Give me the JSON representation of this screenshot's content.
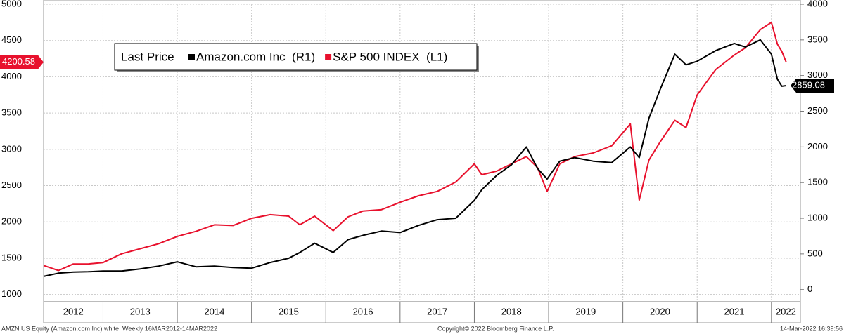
{
  "chart_data": {
    "type": "line",
    "legend_title": "Last Price",
    "x": [
      2012.2,
      2012.4,
      2012.6,
      2012.8,
      2013.0,
      2013.25,
      2013.5,
      2013.75,
      2014.0,
      2014.25,
      2014.5,
      2014.75,
      2015.0,
      2015.25,
      2015.5,
      2015.65,
      2015.85,
      2016.1,
      2016.3,
      2016.5,
      2016.75,
      2017.0,
      2017.25,
      2017.5,
      2017.75,
      2018.0,
      2018.1,
      2018.3,
      2018.5,
      2018.7,
      2018.85,
      2018.98,
      2019.15,
      2019.35,
      2019.6,
      2019.85,
      2020.1,
      2020.22,
      2020.35,
      2020.5,
      2020.7,
      2020.85,
      2021.0,
      2021.25,
      2021.5,
      2021.65,
      2021.85,
      2022.0,
      2022.08,
      2022.14,
      2022.2
    ],
    "series": [
      {
        "name": "Amazon.com Inc  (R1)",
        "color": "#000000",
        "axis": "y2",
        "values": [
          185,
          230,
          245,
          250,
          260,
          260,
          290,
          330,
          390,
          320,
          330,
          310,
          300,
          380,
          440,
          520,
          650,
          520,
          700,
          760,
          820,
          800,
          900,
          980,
          1000,
          1250,
          1400,
          1600,
          1750,
          2000,
          1700,
          1550,
          1800,
          1850,
          1800,
          1780,
          2000,
          1850,
          2400,
          2800,
          3300,
          3150,
          3200,
          3350,
          3450,
          3400,
          3500,
          3300,
          2950,
          2850,
          2859.08
        ]
      },
      {
        "name": "S&P 500 INDEX  (L1)",
        "color": "#e8112d",
        "axis": "y",
        "values": [
          1400,
          1330,
          1420,
          1420,
          1440,
          1560,
          1630,
          1700,
          1800,
          1870,
          1960,
          1950,
          2050,
          2100,
          2080,
          1960,
          2080,
          1880,
          2070,
          2150,
          2170,
          2270,
          2360,
          2420,
          2550,
          2800,
          2650,
          2700,
          2800,
          2900,
          2750,
          2420,
          2800,
          2900,
          2950,
          3050,
          3350,
          2300,
          2850,
          3100,
          3400,
          3300,
          3750,
          4100,
          4300,
          4400,
          4650,
          4750,
          4450,
          4350,
          4200.58
        ]
      }
    ],
    "xlim": [
      2012.2,
      2022.39
    ],
    "xticks": [
      2013,
      2014,
      2015,
      2016,
      2017,
      2018,
      2019,
      2020,
      2021,
      2022
    ],
    "year_labels": [
      2012,
      2013,
      2014,
      2015,
      2016,
      2017,
      2018,
      2019,
      2020,
      2021,
      2022
    ],
    "ylim": [
      900,
      5000
    ],
    "yticks": [
      1000,
      1500,
      2000,
      2500,
      3000,
      3500,
      4000,
      4500,
      5000
    ],
    "y2lim": [
      -170,
      4000
    ],
    "y2ticks": [
      0,
      500,
      1000,
      1500,
      2000,
      2500,
      3000,
      3500,
      4000
    ],
    "grid": true,
    "footer_left": "AMZN US Equity (Amazon.com Inc) white  Weekly 16MAR2012-14MAR2022",
    "footer_center": "Copyright© 2022 Bloomberg Finance L.P.",
    "footer_right": "14-Mar-2022 16:39:56"
  }
}
